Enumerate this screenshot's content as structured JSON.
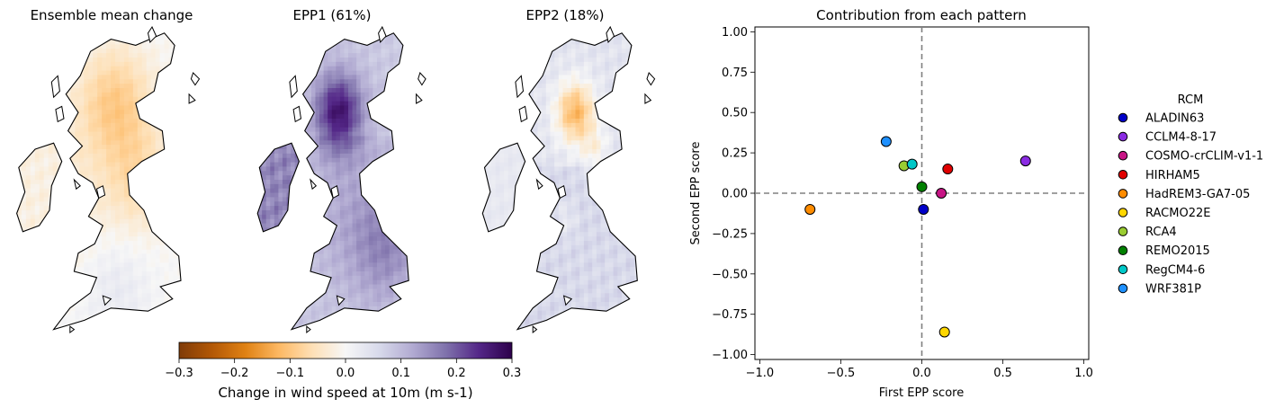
{
  "maps": [
    {
      "title": "Ensemble mean change",
      "field": "mean"
    },
    {
      "title": "EPP1 (61%)",
      "field": "epp1"
    },
    {
      "title": "EPP2 (18%)",
      "field": "epp2"
    }
  ],
  "colorbar": {
    "label": "Change in wind speed at 10m (m s-1)",
    "min": -0.3,
    "max": 0.3,
    "ticks": [
      "−0.3",
      "−0.2",
      "−0.1",
      "0.0",
      "0.1",
      "0.2",
      "0.3"
    ],
    "tick_values": [
      -0.3,
      -0.2,
      -0.1,
      0.0,
      0.1,
      0.2,
      0.3
    ],
    "colormap": "PuOr",
    "stops": [
      "#7f3b08",
      "#b35806",
      "#e08214",
      "#fdb863",
      "#fee0b6",
      "#f7f7f7",
      "#d8daeb",
      "#b2abd2",
      "#8073ac",
      "#542788",
      "#2d004b"
    ]
  },
  "chart_data": {
    "type": "scatter",
    "title": "Contribution from each pattern",
    "xlabel": "First EPP score",
    "ylabel": "Second EPP score",
    "xlim": [
      -1.03,
      1.03
    ],
    "ylim": [
      -1.03,
      1.03
    ],
    "xticks": [
      -1.0,
      -0.5,
      0.0,
      0.5,
      1.0
    ],
    "xtick_labels": [
      "−1.0",
      "−0.5",
      "0.0",
      "0.5",
      "1.0"
    ],
    "yticks": [
      1.0,
      0.75,
      0.5,
      0.25,
      0.0,
      -0.25,
      -0.5,
      -0.75,
      -1.0
    ],
    "ytick_labels": [
      "1.00",
      "0.75",
      "0.50",
      "0.25",
      "0.00",
      "−0.25",
      "−0.50",
      "−0.75",
      "−1.00"
    ],
    "reference_lines": {
      "x": 0,
      "y": 0,
      "style": "dashed",
      "color": "#808080"
    },
    "grid": false,
    "legend_title": "RCM",
    "legend_position": "right-outside",
    "points": [
      {
        "name": "ALADIN63",
        "x": 0.01,
        "y": -0.1,
        "color": "#0000c8"
      },
      {
        "name": "CCLM4-8-17",
        "x": 0.64,
        "y": 0.2,
        "color": "#8a2be2"
      },
      {
        "name": "COSMO-crCLIM-v1-1",
        "x": 0.12,
        "y": 0.0,
        "color": "#c71585"
      },
      {
        "name": "HIRHAM5",
        "x": 0.16,
        "y": 0.15,
        "color": "#e00000"
      },
      {
        "name": "HadREM3-GA7-05",
        "x": -0.69,
        "y": -0.1,
        "color": "#ff8c00"
      },
      {
        "name": "RACMO22E",
        "x": 0.14,
        "y": -0.86,
        "color": "#ffd700"
      },
      {
        "name": "RCA4",
        "x": -0.11,
        "y": 0.17,
        "color": "#9acd32"
      },
      {
        "name": "REMO2015",
        "x": 0.0,
        "y": 0.04,
        "color": "#008000"
      },
      {
        "name": "RegCM4-6",
        "x": -0.06,
        "y": 0.18,
        "color": "#00c8c8"
      },
      {
        "name": "WRF381P",
        "x": -0.22,
        "y": 0.32,
        "color": "#1e90ff"
      }
    ]
  }
}
